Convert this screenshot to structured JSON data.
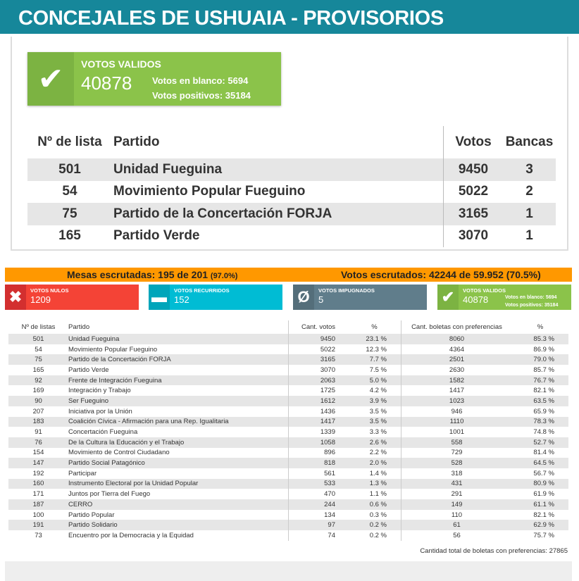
{
  "title": "CONCEJALES DE USHUAIA - PROVISORIOS",
  "top": {
    "valid": {
      "label": "VOTOS VALIDOS",
      "value": "40878",
      "blank": "Votos en blanco: 5694",
      "positive": "Votos positivos: 35184"
    },
    "headers": [
      "Nº de lista",
      "Partido",
      "Votos",
      "Bancas"
    ],
    "rows": [
      {
        "lista": "501",
        "partido": "Unidad Fueguina",
        "votos": "9450",
        "bancas": "3"
      },
      {
        "lista": "54",
        "partido": "Movimiento Popular Fueguino",
        "votos": "5022",
        "bancas": "2"
      },
      {
        "lista": "75",
        "partido": "Partido de la Concertación FORJA",
        "votos": "3165",
        "bancas": "1"
      },
      {
        "lista": "165",
        "partido": "Partido Verde",
        "votos": "3070",
        "bancas": "1"
      }
    ]
  },
  "bar": {
    "mesas": "Mesas escrutadas: 195 de 201",
    "mesas_pct": "(97.0%)",
    "votos": "Votos escrutados: 42244 de 59.952 (70.5%)"
  },
  "boxes": {
    "nulos": {
      "label": "VOTOS NULOS",
      "value": "1209",
      "color": "#f44336"
    },
    "recurridos": {
      "label": "VOTOS RECURRIDOS",
      "value": "152",
      "color": "#00bcd4"
    },
    "impugnados": {
      "label": "VOTOS IMPUGNADOS",
      "value": "5",
      "color": "#607d8b"
    },
    "validos": {
      "label": "VOTOS VALIDOS",
      "value": "40878",
      "blank": "Votos en blanco: 5694",
      "positive": "Votos positivos: 35184",
      "color": "#8bc34a"
    }
  },
  "table": {
    "headers": [
      "Nº de listas",
      "Partido",
      "Cant. votos",
      "%",
      "Cant. boletas con preferencias",
      "%"
    ],
    "rows": [
      [
        "501",
        "Unidad Fueguina",
        "9450",
        "23.1 %",
        "8060",
        "85.3 %"
      ],
      [
        "54",
        "Movimiento Popular Fueguino",
        "5022",
        "12.3 %",
        "4364",
        "86.9 %"
      ],
      [
        "75",
        "Partido de la Concertación FORJA",
        "3165",
        "7.7 %",
        "2501",
        "79.0 %"
      ],
      [
        "165",
        "Partido Verde",
        "3070",
        "7.5 %",
        "2630",
        "85.7 %"
      ],
      [
        "92",
        "Frente de Integración Fueguina",
        "2063",
        "5.0 %",
        "1582",
        "76.7 %"
      ],
      [
        "169",
        "Integración y Trabajo",
        "1725",
        "4.2 %",
        "1417",
        "82.1 %"
      ],
      [
        "90",
        "Ser Fueguino",
        "1612",
        "3.9 %",
        "1023",
        "63.5 %"
      ],
      [
        "207",
        "Iniciativa por la Unión",
        "1436",
        "3.5 %",
        "946",
        "65.9 %"
      ],
      [
        "183",
        "Coalición Cívica - Afirmación para una Rep. Igualitaria",
        "1417",
        "3.5 %",
        "1110",
        "78.3 %"
      ],
      [
        "91",
        "Concertación Fueguina",
        "1339",
        "3.3 %",
        "1001",
        "74.8 %"
      ],
      [
        "76",
        "De la Cultura la Educación y el Trabajo",
        "1058",
        "2.6 %",
        "558",
        "52.7 %"
      ],
      [
        "154",
        "Movimiento de Control Ciudadano",
        "896",
        "2.2 %",
        "729",
        "81.4 %"
      ],
      [
        "147",
        "Partido Social Patagónico",
        "818",
        "2.0 %",
        "528",
        "64.5 %"
      ],
      [
        "192",
        "Participar",
        "561",
        "1.4 %",
        "318",
        "56.7 %"
      ],
      [
        "160",
        "Instrumento Electoral por la Unidad Popular",
        "533",
        "1.3 %",
        "431",
        "80.9 %"
      ],
      [
        "171",
        "Juntos por Tierra del Fuego",
        "470",
        "1.1 %",
        "291",
        "61.9 %"
      ],
      [
        "187",
        "CERRO",
        "244",
        "0.6 %",
        "149",
        "61.1 %"
      ],
      [
        "100",
        "Partido Popular",
        "134",
        "0.3 %",
        "110",
        "82.1 %"
      ],
      [
        "191",
        "Partido Solidario",
        "97",
        "0.2 %",
        "61",
        "62.9 %"
      ],
      [
        "73",
        "Encuentro por la Democracia y la Equidad",
        "74",
        "0.2 %",
        "56",
        "75.7 %"
      ]
    ],
    "footer": "Cantidad total de boletas con preferencias: 27865"
  }
}
